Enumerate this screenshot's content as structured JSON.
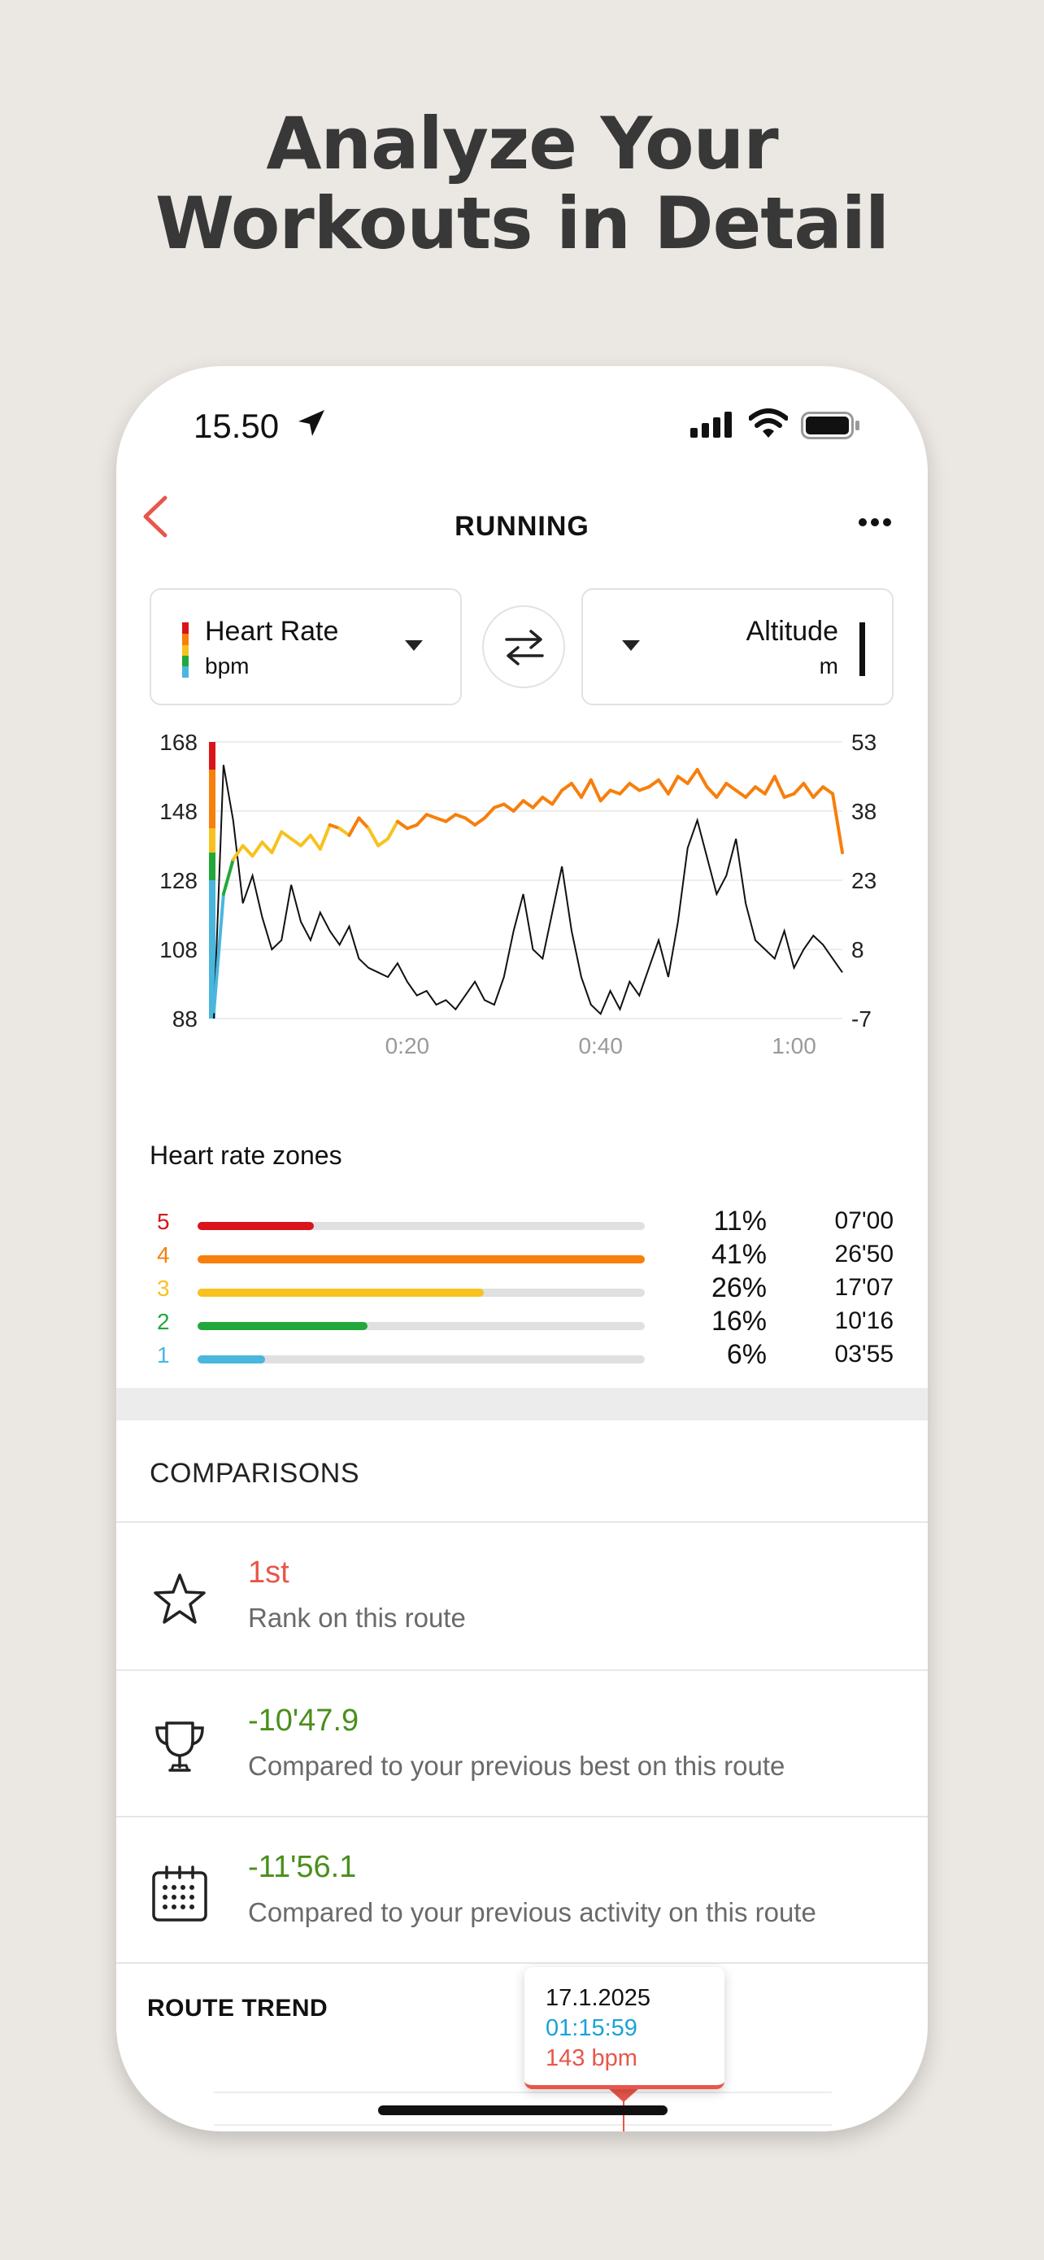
{
  "headline": [
    "Analyze Your",
    "Workouts in Detail"
  ],
  "status": {
    "time": "15.50"
  },
  "header": {
    "title": "RUNNING"
  },
  "selectors": {
    "left": {
      "name": "Heart Rate",
      "unit": "bpm"
    },
    "right": {
      "name": "Altitude",
      "unit": "m"
    }
  },
  "chart_data": {
    "type": "line",
    "left_axis": {
      "ticks": [
        168,
        148,
        128,
        108,
        88
      ],
      "range": [
        88,
        168
      ],
      "unit": "bpm"
    },
    "right_axis": {
      "ticks": [
        53,
        38,
        23,
        8,
        -7
      ],
      "range": [
        -7,
        53
      ],
      "unit": "m"
    },
    "x_ticks": [
      "0:20",
      "0:40",
      "1:00"
    ],
    "x_range_minutes": [
      0,
      65
    ],
    "series": [
      {
        "name": "Heart Rate",
        "x": [
          0,
          1,
          2,
          3,
          4,
          5,
          6,
          7,
          8,
          9,
          10,
          11,
          12,
          13,
          14,
          15,
          16,
          17,
          18,
          19,
          20,
          21,
          22,
          23,
          24,
          25,
          26,
          27,
          28,
          29,
          30,
          31,
          32,
          33,
          34,
          35,
          36,
          37,
          38,
          39,
          40,
          41,
          42,
          43,
          44,
          45,
          46,
          47,
          48,
          49,
          50,
          51,
          52,
          53,
          54,
          55,
          56,
          57,
          58,
          59,
          60,
          61,
          62,
          63,
          64,
          65
        ],
        "values": [
          90,
          124,
          134,
          138,
          135,
          139,
          136,
          142,
          140,
          138,
          141,
          137,
          144,
          143,
          141,
          146,
          143,
          138,
          140,
          145,
          143,
          144,
          147,
          146,
          145,
          147,
          146,
          144,
          146,
          149,
          150,
          148,
          151,
          149,
          152,
          150,
          154,
          156,
          152,
          157,
          151,
          154,
          153,
          156,
          154,
          155,
          157,
          153,
          158,
          156,
          160,
          155,
          152,
          156,
          154,
          152,
          155,
          153,
          158,
          152,
          153,
          156,
          152,
          155,
          153,
          136
        ]
      },
      {
        "name": "Altitude",
        "x": [
          0,
          1,
          2,
          3,
          4,
          5,
          6,
          7,
          8,
          9,
          10,
          11,
          12,
          13,
          14,
          15,
          16,
          17,
          18,
          19,
          20,
          21,
          22,
          23,
          24,
          25,
          26,
          27,
          28,
          29,
          30,
          31,
          32,
          33,
          34,
          35,
          36,
          37,
          38,
          39,
          40,
          41,
          42,
          43,
          44,
          45,
          46,
          47,
          48,
          49,
          50,
          51,
          52,
          53,
          54,
          55,
          56,
          57,
          58,
          59,
          60,
          61,
          62,
          63,
          64,
          65
        ],
        "values": [
          -7,
          48,
          36,
          18,
          24,
          15,
          8,
          10,
          22,
          14,
          10,
          16,
          12,
          9,
          13,
          6,
          4,
          3,
          2,
          5,
          1,
          -2,
          -1,
          -4,
          -3,
          -5,
          -2,
          1,
          -3,
          -4,
          2,
          12,
          20,
          8,
          6,
          16,
          26,
          12,
          2,
          -4,
          -6,
          -1,
          -5,
          1,
          -2,
          4,
          10,
          2,
          14,
          30,
          36,
          28,
          20,
          24,
          32,
          18,
          10,
          8,
          6,
          12,
          4,
          8,
          11,
          9,
          6,
          3
        ]
      }
    ],
    "zone_colors": [
      "#4ab6de",
      "#22a83a",
      "#f7c21f",
      "#f77f0c",
      "#d9141b"
    ],
    "zone_bounds_bpm": [
      88,
      128,
      136,
      143,
      160,
      168
    ]
  },
  "zones": {
    "title": "Heart rate zones",
    "rows": [
      {
        "num": "5",
        "pct": "11%",
        "time": "07'00",
        "fraction": 0.26,
        "color": "#d9141b"
      },
      {
        "num": "4",
        "pct": "41%",
        "time": "26'50",
        "fraction": 1.0,
        "color": "#f77f0c"
      },
      {
        "num": "3",
        "pct": "26%",
        "time": "17'07",
        "fraction": 0.64,
        "color": "#f7c21f"
      },
      {
        "num": "2",
        "pct": "16%",
        "time": "10'16",
        "fraction": 0.38,
        "color": "#22a83a"
      },
      {
        "num": "1",
        "pct": "6%",
        "time": "03'55",
        "fraction": 0.15,
        "color": "#4ab6de"
      }
    ]
  },
  "comparisons": {
    "title": "COMPARISONS",
    "items": [
      {
        "value": "1st",
        "desc": "Rank on this route",
        "color": "#e8564b",
        "icon": "star-icon"
      },
      {
        "value": "-10'47.9",
        "desc": "Compared to your previous best on this route",
        "color": "#4a8f1c",
        "icon": "trophy-icon"
      },
      {
        "value": "-11'56.1",
        "desc": "Compared to your previous activity on this route",
        "color": "#4a8f1c",
        "icon": "calendar-icon"
      }
    ]
  },
  "route_trend": {
    "title": "ROUTE TREND",
    "tooltip": {
      "date": "17.1.2025",
      "duration": "01:15:59",
      "hr": "143 bpm"
    }
  },
  "colors": {
    "accent_red": "#e8564b",
    "green": "#4a8f1c",
    "cyan": "#1aa3d6"
  }
}
